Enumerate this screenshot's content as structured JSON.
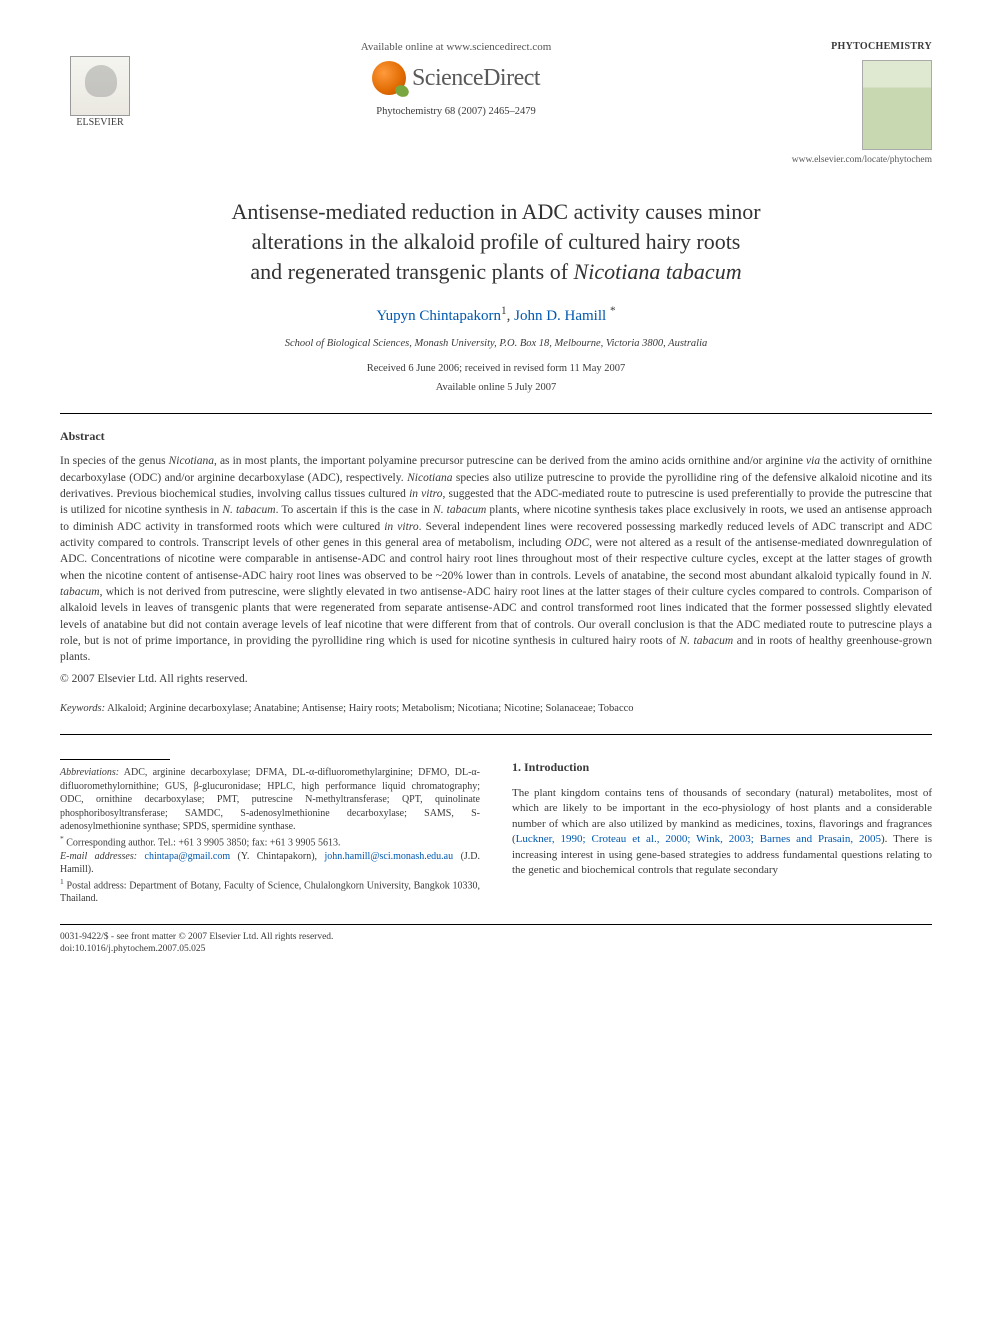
{
  "header": {
    "available_text": "Available online at www.sciencedirect.com",
    "sd_brand": "ScienceDirect",
    "journal_ref": "Phytochemistry 68 (2007) 2465–2479",
    "elsevier_label": "ELSEVIER",
    "journal_name": "PHYTOCHEMISTRY",
    "locate_url": "www.elsevier.com/locate/phytochem"
  },
  "title": {
    "line1": "Antisense-mediated reduction in ADC activity causes minor",
    "line2": "alterations in the alkaloid profile of cultured hairy roots",
    "line3_pre": "and regenerated transgenic plants of ",
    "line3_ital": "Nicotiana tabacum"
  },
  "authors": {
    "a1_name": "Yupyn Chintapakorn",
    "a1_sup": "1",
    "sep": ", ",
    "a2_name": "John D. Hamill",
    "a2_sup": "*"
  },
  "affiliation": "School of Biological Sciences, Monash University, P.O. Box 18, Melbourne, Victoria 3800, Australia",
  "dates": {
    "received": "Received 6 June 2006; received in revised form 11 May 2007",
    "online": "Available online 5 July 2007"
  },
  "abstract": {
    "heading": "Abstract",
    "text_parts": [
      {
        "t": "In species of the genus ",
        "i": false
      },
      {
        "t": "Nicotiana",
        "i": true
      },
      {
        "t": ", as in most plants, the important polyamine precursor putrescine can be derived from the amino acids ornithine and/or arginine ",
        "i": false
      },
      {
        "t": "via",
        "i": true
      },
      {
        "t": " the activity of ornithine decarboxylase (ODC) and/or arginine decarboxylase (ADC), respectively. ",
        "i": false
      },
      {
        "t": "Nicotiana",
        "i": true
      },
      {
        "t": " species also utilize putrescine to provide the pyrollidine ring of the defensive alkaloid nicotine and its derivatives. Previous biochemical studies, involving callus tissues cultured ",
        "i": false
      },
      {
        "t": "in vitro",
        "i": true
      },
      {
        "t": ", suggested that the ADC-mediated route to putrescine is used preferentially to provide the putrescine that is utilized for nicotine synthesis in ",
        "i": false
      },
      {
        "t": "N. tabacum",
        "i": true
      },
      {
        "t": ". To ascertain if this is the case in ",
        "i": false
      },
      {
        "t": "N. tabacum",
        "i": true
      },
      {
        "t": " plants, where nicotine synthesis takes place exclusively in roots, we used an antisense approach to diminish ADC activity in transformed roots which were cultured ",
        "i": false
      },
      {
        "t": "in vitro",
        "i": true
      },
      {
        "t": ". Several independent lines were recovered possessing markedly reduced levels of ADC transcript and ADC activity compared to controls. Transcript levels of other genes in this general area of metabolism, including ",
        "i": false
      },
      {
        "t": "ODC",
        "i": true
      },
      {
        "t": ", were not altered as a result of the antisense-mediated downregulation of ADC. Concentrations of nicotine were comparable in antisense-ADC and control hairy root lines throughout most of their respective culture cycles, except at the latter stages of growth when the nicotine content of antisense-ADC hairy root lines was observed to be ~20% lower than in controls. Levels of anatabine, the second most abundant alkaloid typically found in ",
        "i": false
      },
      {
        "t": "N. tabacum",
        "i": true
      },
      {
        "t": ", which is not derived from putrescine, were slightly elevated in two antisense-ADC hairy root lines at the latter stages of their culture cycles compared to controls. Comparison of alkaloid levels in leaves of transgenic plants that were regenerated from separate antisense-ADC and control transformed root lines indicated that the former possessed slightly elevated levels of anatabine but did not contain average levels of leaf nicotine that were different from that of controls. Our overall conclusion is that the ADC mediated route to putrescine plays a role, but is not of prime importance, in providing the pyrollidine ring which is used for nicotine synthesis in cultured hairy roots of ",
        "i": false
      },
      {
        "t": "N. tabacum",
        "i": true
      },
      {
        "t": " and in roots of healthy greenhouse-grown plants.",
        "i": false
      }
    ],
    "copyright": "© 2007 Elsevier Ltd. All rights reserved."
  },
  "keywords": {
    "label": "Keywords:",
    "text": " Alkaloid; Arginine decarboxylase; Anatabine; Antisense; Hairy roots; Metabolism; Nicotiana; Nicotine; Solanaceae; Tobacco"
  },
  "footnotes": {
    "abbrev_label": "Abbreviations:",
    "abbrev_text": " ADC, arginine decarboxylase; DFMA, DL-α-difluoromethylarginine; DFMO, DL-α-difluoromethylornithine; GUS, β-glucuronidase; HPLC, high performance liquid chromatography; ODC, ornithine decarboxylase; PMT, putrescine N-methyltransferase; QPT, quinolinate phosphoribosyltransferase; SAMDC, S-adenosylmethionine decarboxylase; SAMS, S-adenosylmethionine synthase; SPDS, spermidine synthase.",
    "corr_label": "Corresponding author. Tel.: +61 3 9905 3850; fax: +61 3 9905 5613.",
    "email_label": "E-mail addresses:",
    "email1": "chintapa@gmail.com",
    "email1_who": " (Y. Chintapakorn), ",
    "email2": "john.hamill@sci.monash.edu.au",
    "email2_who": " (J.D. Hamill).",
    "postal_sup": "1",
    "postal": " Postal address: Department of Botany, Faculty of Science, Chulalongkorn University, Bangkok 10330, Thailand."
  },
  "intro": {
    "heading": "1. Introduction",
    "text_pre": "The plant kingdom contains tens of thousands of secondary (natural) metabolites, most of which are likely to be important in the eco-physiology of host plants and a considerable number of which are also utilized by mankind as medicines, toxins, flavorings and fragrances (",
    "refs": "Luckner, 1990; Croteau et al., 2000; Wink, 2003; Barnes and Prasain, 2005",
    "text_post": "). There is increasing interest in using gene-based strategies to address fundamental questions relating to the genetic and biochemical controls that regulate secondary"
  },
  "footer": {
    "line1": "0031-9422/$ - see front matter © 2007 Elsevier Ltd. All rights reserved.",
    "line2": "doi:10.1016/j.phytochem.2007.05.025"
  }
}
